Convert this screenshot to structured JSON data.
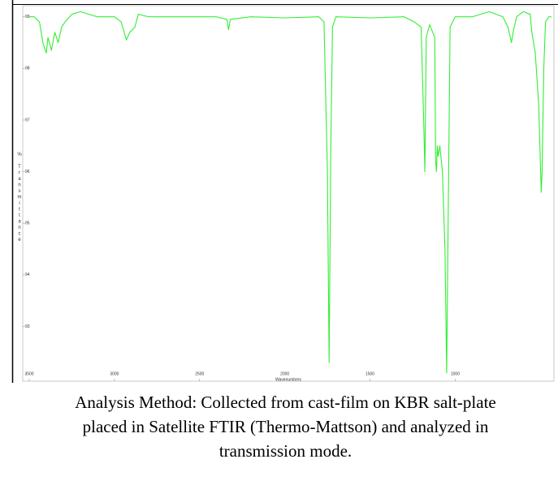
{
  "chart_data": {
    "type": "line",
    "xlabel": "Wavenumbers",
    "ylabel": "% Transmittance",
    "x": [
      3500,
      3470,
      3440,
      3420,
      3400,
      3390,
      3370,
      3350,
      3330,
      3310,
      3290,
      3250,
      3200,
      3100,
      3000,
      2960,
      2930,
      2910,
      2880,
      2860,
      2800,
      2600,
      2400,
      2340,
      2330,
      2320,
      2200,
      2000,
      1800,
      1770,
      1750,
      1740,
      1730,
      1720,
      1700,
      1500,
      1300,
      1240,
      1200,
      1185,
      1178,
      1170,
      1150,
      1120,
      1115,
      1110,
      1105,
      1100,
      1090,
      1075,
      1060,
      1050,
      1040,
      1030,
      1000,
      900,
      800,
      720,
      690,
      670,
      660,
      640,
      600,
      560,
      550,
      530,
      510,
      495,
      490,
      480,
      470,
      450,
      435
    ],
    "values": [
      99.0,
      99.0,
      98.9,
      98.5,
      98.3,
      98.6,
      98.35,
      98.7,
      98.5,
      98.8,
      98.9,
      99.05,
      99.1,
      99.0,
      99.0,
      98.9,
      98.55,
      98.7,
      98.8,
      99.05,
      99.0,
      99.0,
      99.0,
      98.95,
      98.75,
      98.95,
      99.0,
      98.98,
      99.0,
      98.9,
      96.0,
      92.3,
      96.5,
      98.8,
      99.0,
      98.98,
      99.0,
      98.9,
      98.8,
      97.0,
      96.0,
      98.6,
      98.85,
      98.6,
      96.2,
      96.0,
      96.5,
      96.3,
      96.5,
      96.0,
      94.5,
      92.1,
      95.5,
      98.8,
      99.0,
      99.0,
      99.1,
      99.0,
      98.8,
      98.5,
      98.7,
      99.0,
      99.1,
      99.05,
      98.7,
      98.3,
      97.3,
      95.6,
      96.0,
      98.0,
      98.9,
      99.0,
      99.0
    ],
    "color": "#33ee33",
    "xlim": [
      3500,
      430
    ],
    "ylim": [
      92.05,
      99.2
    ],
    "xticks": [
      3500,
      3000,
      2500,
      2000,
      1500,
      1000
    ],
    "yticks": [
      93,
      94,
      95,
      96,
      97,
      98,
      99
    ],
    "grid": false
  },
  "caption": [
    "Analysis Method: Collected from cast-film on KBR salt-plate",
    "placed in Satellite FTIR (Thermo-Mattson) and analyzed in",
    "transmission mode."
  ]
}
